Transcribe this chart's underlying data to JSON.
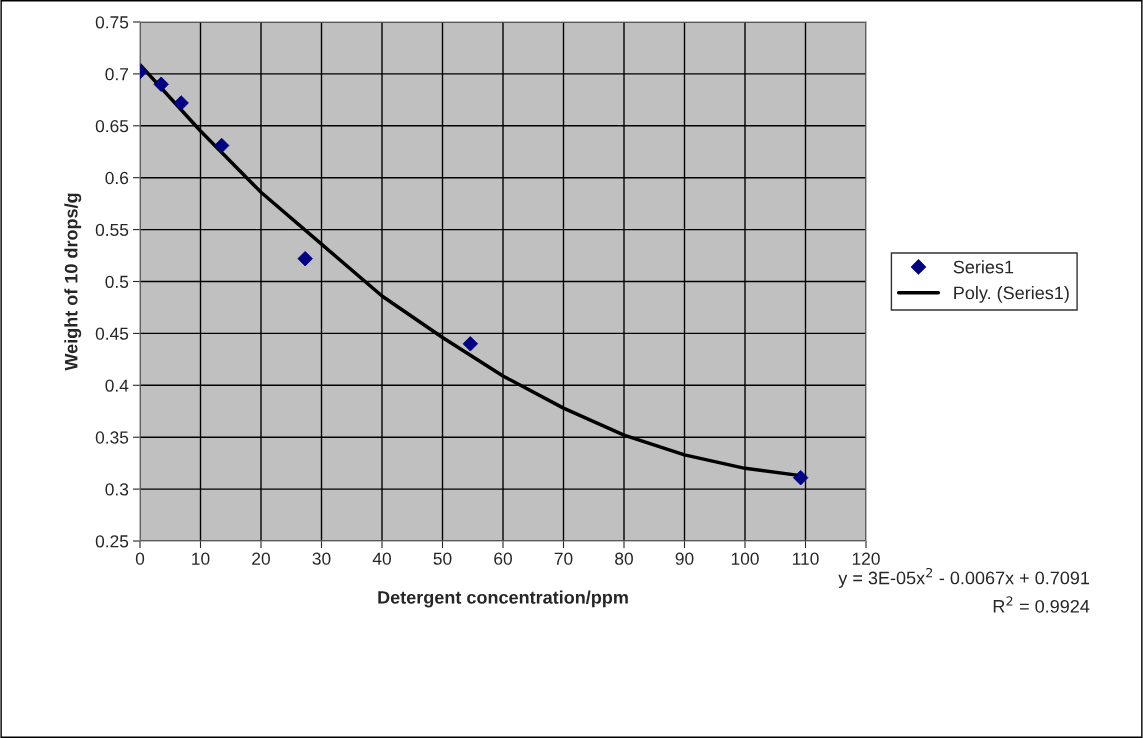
{
  "chart_data": {
    "type": "scatter",
    "xlabel": "Detergent concentration/ppm",
    "ylabel": "Weight of 10 drops/g",
    "series": [
      {
        "name": "Series1",
        "color": "#000080",
        "marker": "diamond",
        "x": [
          0,
          3.5,
          6.8,
          13.5,
          27.3,
          54.6,
          109.2
        ],
        "values": [
          0.702,
          0.69,
          0.672,
          0.631,
          0.522,
          0.44,
          0.311
        ]
      },
      {
        "name": "Poly. (Series1)",
        "type": "line",
        "color": "#000000",
        "marker": "none",
        "line_style": "solid",
        "x": [
          0,
          10,
          20,
          30,
          40,
          50,
          60,
          70,
          80,
          90,
          100,
          109.2
        ],
        "values": [
          0.709,
          0.645,
          0.586,
          0.536,
          0.486,
          0.446,
          0.409,
          0.378,
          0.352,
          0.333,
          0.32,
          0.313
        ]
      }
    ],
    "xlim": [
      0,
      120
    ],
    "xticks": [
      0,
      10,
      20,
      30,
      40,
      50,
      60,
      70,
      80,
      90,
      100,
      110,
      120
    ],
    "ylim": [
      0.25,
      0.75
    ],
    "yticks": [
      0.25,
      0.3,
      0.35,
      0.4,
      0.45,
      0.5,
      0.55,
      0.6,
      0.65,
      0.7,
      0.75
    ],
    "grid": true,
    "legend": "right",
    "annotations": [
      "y = 3E-05x$^{2}$ - 0.0067x + 0.7091",
      "R$^{2}$ = 0.9924"
    ]
  }
}
